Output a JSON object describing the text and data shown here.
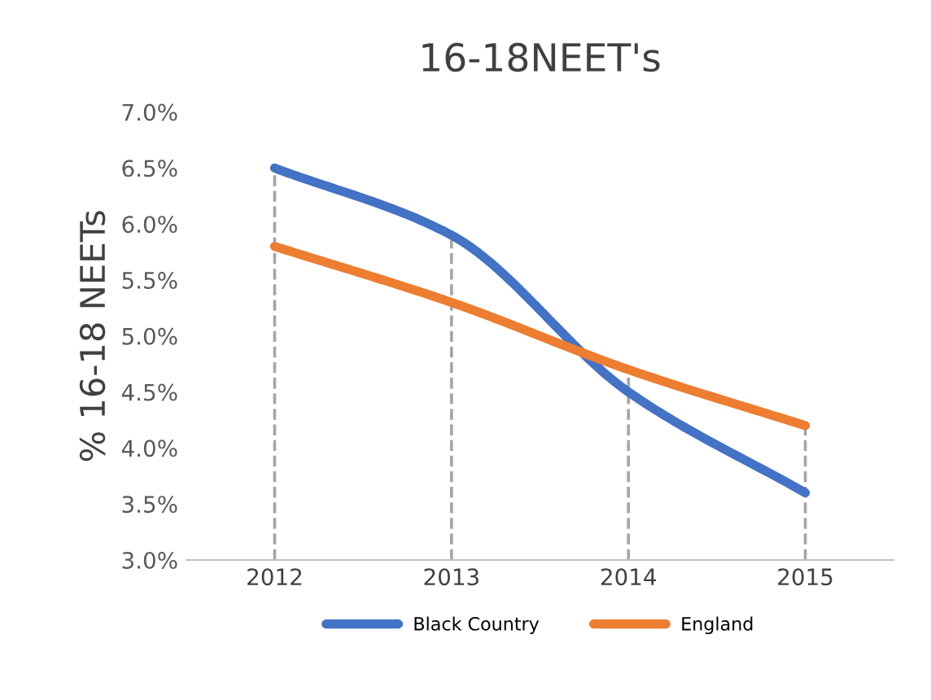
{
  "chart_data": {
    "type": "line",
    "title": "16-18NEET's",
    "ylabel": "% 16-18 NEETs",
    "categories": [
      "2012",
      "2013",
      "2014",
      "2015"
    ],
    "series": [
      {
        "name": "Black Country",
        "color": "#4472c4",
        "values": [
          6.5,
          5.9,
          4.5,
          3.6
        ]
      },
      {
        "name": "England",
        "color": "#ed7d31",
        "values": [
          5.8,
          5.3,
          4.7,
          4.2
        ]
      }
    ],
    "ylim": [
      3.0,
      7.0
    ],
    "yticks": [
      {
        "value": 3.0,
        "label": "3.0%"
      },
      {
        "value": 3.5,
        "label": "3.5%"
      },
      {
        "value": 4.0,
        "label": "4.0%"
      },
      {
        "value": 4.5,
        "label": "4.5%"
      },
      {
        "value": 5.0,
        "label": "5.0%"
      },
      {
        "value": 5.5,
        "label": "5.5%"
      },
      {
        "value": 6.0,
        "label": "6.0%"
      },
      {
        "value": 6.5,
        "label": "6.5%"
      },
      {
        "value": 7.0,
        "label": "7.0%"
      }
    ],
    "ref_lines": [
      {
        "axis": "x",
        "value": "2012",
        "color": "#a5a5a5",
        "line_style": "dashed"
      },
      {
        "axis": "x",
        "value": "2013",
        "color": "#a5a5a5",
        "line_style": "dashed"
      },
      {
        "axis": "x",
        "value": "2014",
        "color": "#a5a5a5",
        "line_style": "dashed"
      },
      {
        "axis": "x",
        "value": "2015",
        "color": "#a5a5a5",
        "line_style": "dashed"
      }
    ],
    "grid": false,
    "legend": "bottom",
    "marker": "none",
    "line_style": "solid"
  }
}
